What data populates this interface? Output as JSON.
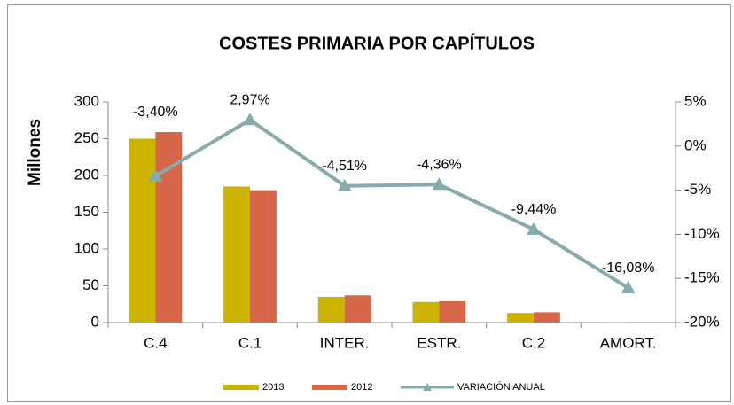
{
  "chart_data": {
    "type": "bar_line",
    "title": "COSTES PRIMARIA POR CAPÍTULOS",
    "y_label": "Millones",
    "categories": [
      "C.4",
      "C.1",
      "INTER.",
      "ESTR.",
      "C.2",
      "AMORT."
    ],
    "series": [
      {
        "name": "2013",
        "color": "#CBB300",
        "type": "bar",
        "values": [
          250,
          185,
          35,
          28,
          13,
          0.5
        ]
      },
      {
        "name": "2012",
        "color": "#D6674B",
        "type": "bar",
        "values": [
          259,
          180,
          37,
          29,
          14,
          0.6
        ]
      },
      {
        "name": "VARIACIÓN ANUAL",
        "color": "#86AAAD",
        "type": "line",
        "axis": "y2",
        "values": [
          -3.4,
          2.97,
          -4.51,
          -4.36,
          -9.44,
          -16.08
        ],
        "value_labels": [
          "-3,40%",
          "2,97%",
          "-4,51%",
          "-4,36%",
          "-9,44%",
          "-16,08%"
        ]
      }
    ],
    "ylim": [
      0,
      300
    ],
    "yticks": [
      0,
      50,
      100,
      150,
      200,
      250,
      300
    ],
    "y2lim": [
      -20,
      5
    ],
    "y2ticks": [
      {
        "value": 5,
        "label": "5%"
      },
      {
        "value": 0,
        "label": "0%"
      },
      {
        "value": -5,
        "label": "-5%"
      },
      {
        "value": -10,
        "label": "-10%"
      },
      {
        "value": -15,
        "label": "-15%"
      },
      {
        "value": -20,
        "label": "-20%"
      }
    ],
    "legend": "bottom"
  }
}
